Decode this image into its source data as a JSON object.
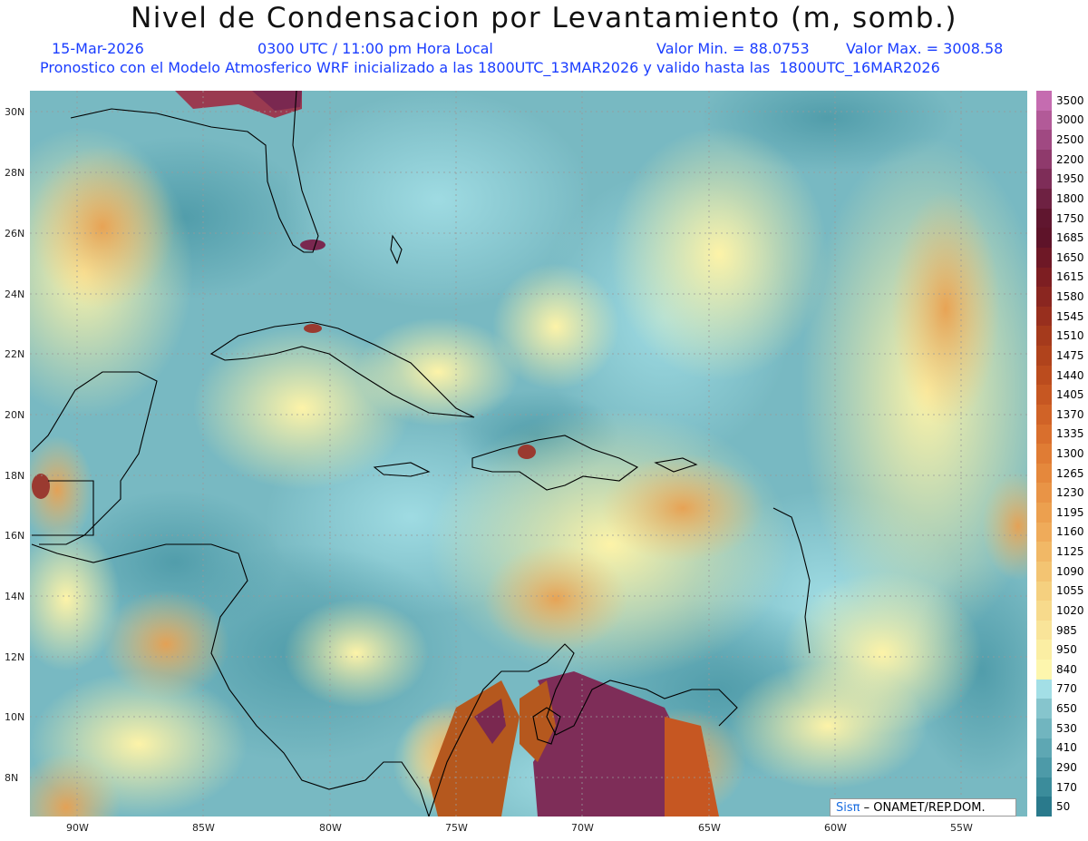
{
  "header": {
    "title": "Nivel de Condensacion por Levantamiento (m, somb.)",
    "date": "15-Mar-2026",
    "time": "0300 UTC / 11:00 pm Hora Local",
    "min_label": "Valor Min. = 88.0753",
    "max_label": "Valor Max. = 3008.58",
    "forecast_line": "Pronostico con el Modelo Atmosferico WRF inicializado a las 1800UTC_13MAR2026 y valido hasta las  1800UTC_16MAR2026"
  },
  "map": {
    "lat_labels": [
      "30N",
      "28N",
      "26N",
      "24N",
      "22N",
      "20N",
      "18N",
      "16N",
      "14N",
      "12N",
      "10N",
      "8N"
    ],
    "lon_labels": [
      "90W",
      "85W",
      "80W",
      "75W",
      "70W",
      "65W",
      "60W",
      "55W"
    ],
    "credit_logo": "Sisπ",
    "credit_text": " – ONAMET/REP.DOM."
  },
  "legend": {
    "levels": [
      "50",
      "170",
      "290",
      "410",
      "530",
      "650",
      "770",
      "840",
      "950",
      "985",
      "1020",
      "1055",
      "1090",
      "1125",
      "1160",
      "1195",
      "1230",
      "1265",
      "1300",
      "1335",
      "1370",
      "1405",
      "1440",
      "1475",
      "1510",
      "1545",
      "1580",
      "1615",
      "1650",
      "1685",
      "1750",
      "1800",
      "1950",
      "2200",
      "2500",
      "3000",
      "3500"
    ],
    "colors": [
      "#2a7a8c",
      "#3b8c9b",
      "#4d9aa8",
      "#5ea7b3",
      "#71b5bf",
      "#86c5cd",
      "#a3dfe6",
      "#fdf6ad",
      "#fbeea3",
      "#f9e499",
      "#f7da8c",
      "#f5d07f",
      "#f3c472",
      "#f1b866",
      "#efab5a",
      "#eca04f",
      "#e99446",
      "#e5883c",
      "#e07c34",
      "#d96f2d",
      "#d06327",
      "#c65722",
      "#bb4c1e",
      "#b0431c",
      "#a53a1c",
      "#982f1e",
      "#8a2620",
      "#7d1e22",
      "#6e1826",
      "#5e1329",
      "#60162f",
      "#6e2142",
      "#7e2d58",
      "#8f3a6c",
      "#a04982",
      "#b25a98",
      "#c56cb0"
    ]
  }
}
